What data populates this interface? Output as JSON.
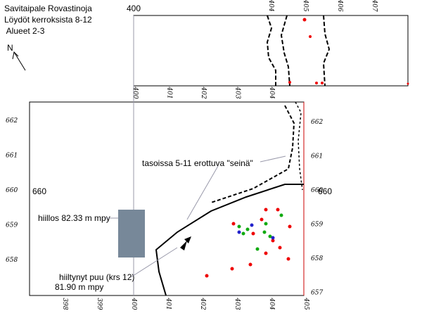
{
  "header": {
    "lines": [
      "Savitaipale Rovastinoja",
      "Löydöt kerroksista 8-12",
      " Alueet 2-3"
    ]
  },
  "north": "N",
  "upper_label": "400",
  "left_label": "660",
  "right_label": "660",
  "axes": {
    "bottom": [
      "398",
      "399",
      "400",
      "401",
      "402",
      "403",
      "404",
      "405"
    ],
    "top": [
      "400",
      "401",
      "402",
      "403",
      "404"
    ],
    "left": [
      "662",
      "661",
      "660",
      "659",
      "658"
    ],
    "right": [
      "662",
      "661",
      "660",
      "659",
      "658",
      "657"
    ],
    "upper_top": [
      "404",
      "405",
      "406",
      "407"
    ]
  },
  "annotations": {
    "wall": "tasoissa 5-11 erottuva \"seinä\"",
    "hearth": "hiillos 82.33 m mpy",
    "wood": "hiiltynyt puu (krs 12)",
    "wood_level": "81.90 m mpy"
  }
}
